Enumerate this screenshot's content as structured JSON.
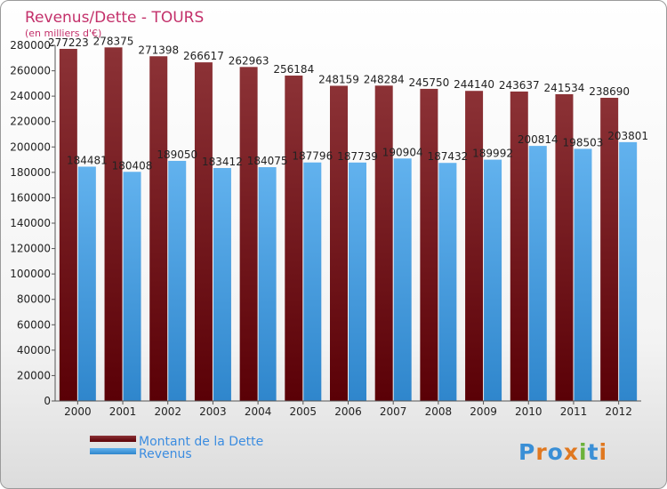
{
  "chart_data": {
    "type": "bar",
    "title": "Revenus/Dette - TOURS",
    "subtitle": "(en milliers d'€)",
    "categories": [
      "2000",
      "2001",
      "2002",
      "2003",
      "2004",
      "2005",
      "2006",
      "2007",
      "2008",
      "2009",
      "2010",
      "2011",
      "2012"
    ],
    "series": [
      {
        "name": "Montant de la Dette",
        "color": "#7a1a1e",
        "values": [
          277223,
          278375,
          271398,
          266617,
          262963,
          256184,
          248159,
          248284,
          245750,
          244140,
          243637,
          241534,
          238690
        ]
      },
      {
        "name": "Revenus",
        "color": "#4a9fe0",
        "values": [
          184481,
          180408,
          189050,
          183412,
          184075,
          187796,
          187739,
          190904,
          187432,
          189992,
          200814,
          198503,
          203801
        ]
      }
    ],
    "ylim": [
      0,
      280000
    ],
    "yticks": [
      0,
      20000,
      40000,
      60000,
      80000,
      100000,
      120000,
      140000,
      160000,
      180000,
      200000,
      220000,
      240000,
      260000,
      280000
    ],
    "legend_position": "bottom-left",
    "grid": false
  },
  "brand": {
    "logo_text": "Proxiti"
  }
}
